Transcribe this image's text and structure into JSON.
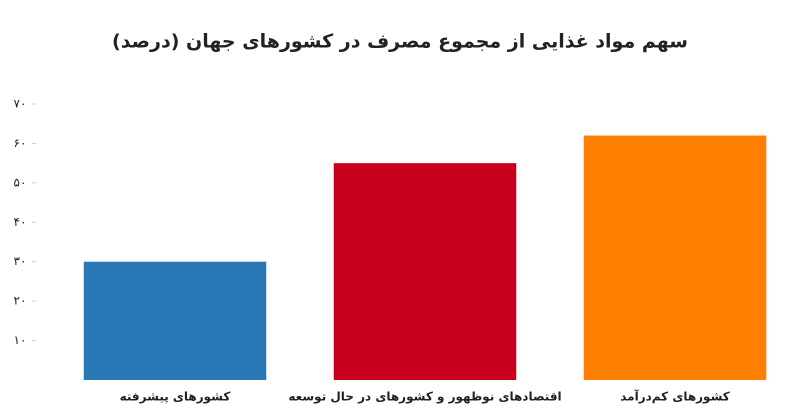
{
  "chart_data": {
    "type": "bar",
    "title": "سهم مواد غذایی از مجموع مصرف در کشورهای جهان (درصد)",
    "categories": [
      "کشورهای پیشرفته",
      "اقتصادهای نوظهور و کشورهای در حال توسعه",
      "کشورهای کم‌درآمد"
    ],
    "values": [
      30,
      55,
      62
    ],
    "colors": [
      "#2878b5",
      "#c8001e",
      "#ff8000"
    ],
    "ylim": [
      0,
      70
    ],
    "yticks": [
      {
        "value": 10,
        "label": "۱۰"
      },
      {
        "value": 20,
        "label": "۲۰"
      },
      {
        "value": 30,
        "label": "۳۰"
      },
      {
        "value": 40,
        "label": "۴۰"
      },
      {
        "value": 50,
        "label": "۵۰"
      },
      {
        "value": 60,
        "label": "۶۰"
      },
      {
        "value": 70,
        "label": "۷۰"
      }
    ],
    "grid": false
  }
}
